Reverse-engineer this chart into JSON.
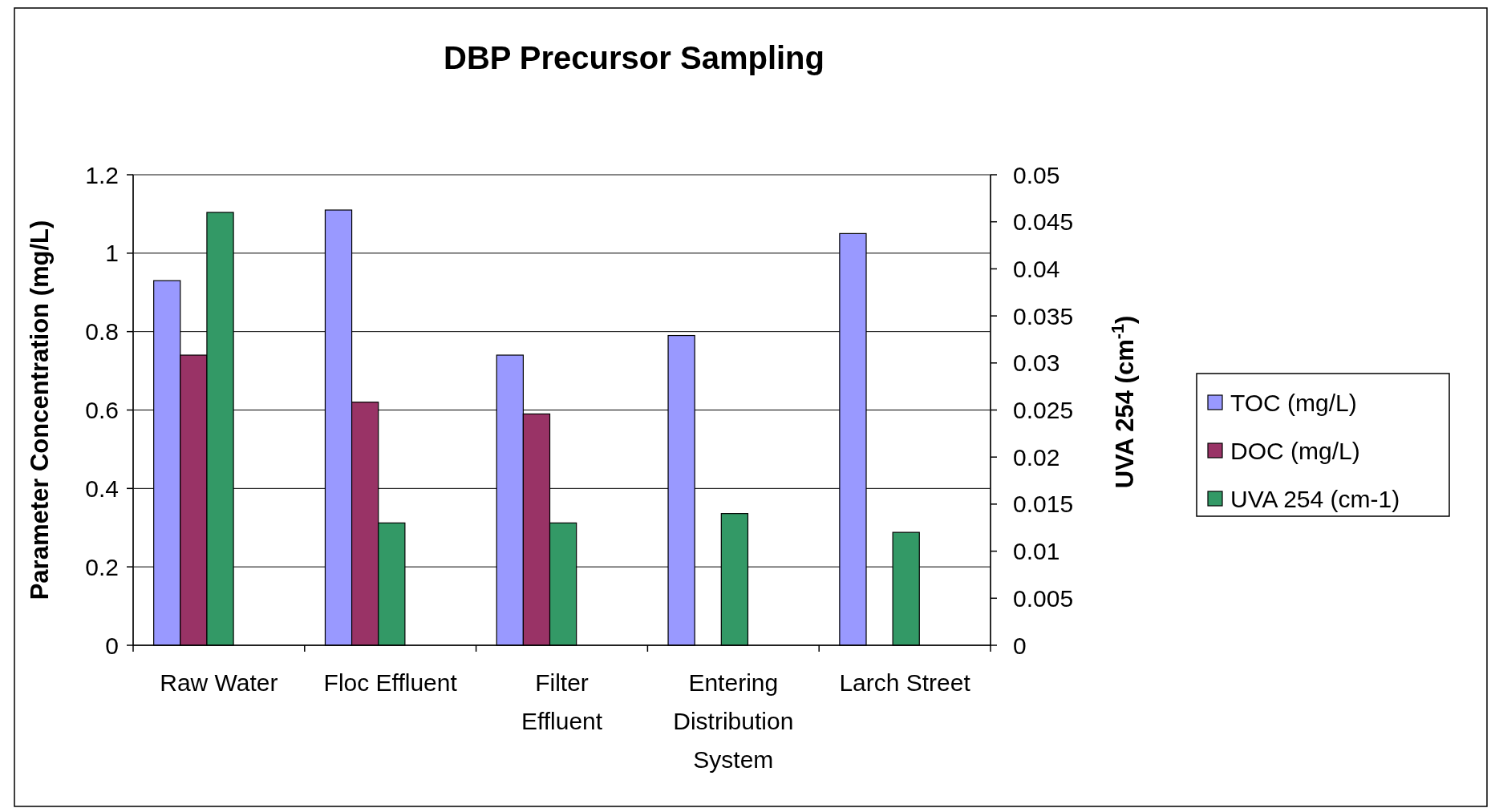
{
  "chart_data": {
    "type": "bar",
    "title": "DBP Precursor Sampling",
    "ylabel": "Parameter Concentration (mg/L)",
    "y2label": "UVA 254 (cm$^{-1}$)",
    "categories": [
      "Raw Water",
      "Floc Effluent",
      "Filter Effluent",
      "Entering Distribution System",
      "Larch Street"
    ],
    "series": [
      {
        "name": "TOC (mg/L)",
        "color": "#9999ff",
        "values": [
          0.93,
          1.11,
          0.74,
          0.79,
          1.05
        ]
      },
      {
        "name": "DOC (mg/L)",
        "color": "#993366",
        "values": [
          0.74,
          0.62,
          0.59,
          null,
          null
        ]
      },
      {
        "name": "UVA 254 (cm-1)",
        "color": "#339966",
        "axis": "y2",
        "values": [
          0.046,
          0.013,
          0.013,
          0.014,
          0.012
        ]
      }
    ],
    "ylim": [
      0,
      1.2
    ],
    "yticks": [
      0,
      0.2,
      0.4,
      0.6,
      0.8,
      1,
      1.2
    ],
    "y2lim": [
      0,
      0.05
    ],
    "y2ticks": [
      0,
      0.005,
      0.01,
      0.015,
      0.02,
      0.025,
      0.03,
      0.035,
      0.04,
      0.045,
      0.05
    ],
    "grid": "y",
    "legend": "right"
  }
}
